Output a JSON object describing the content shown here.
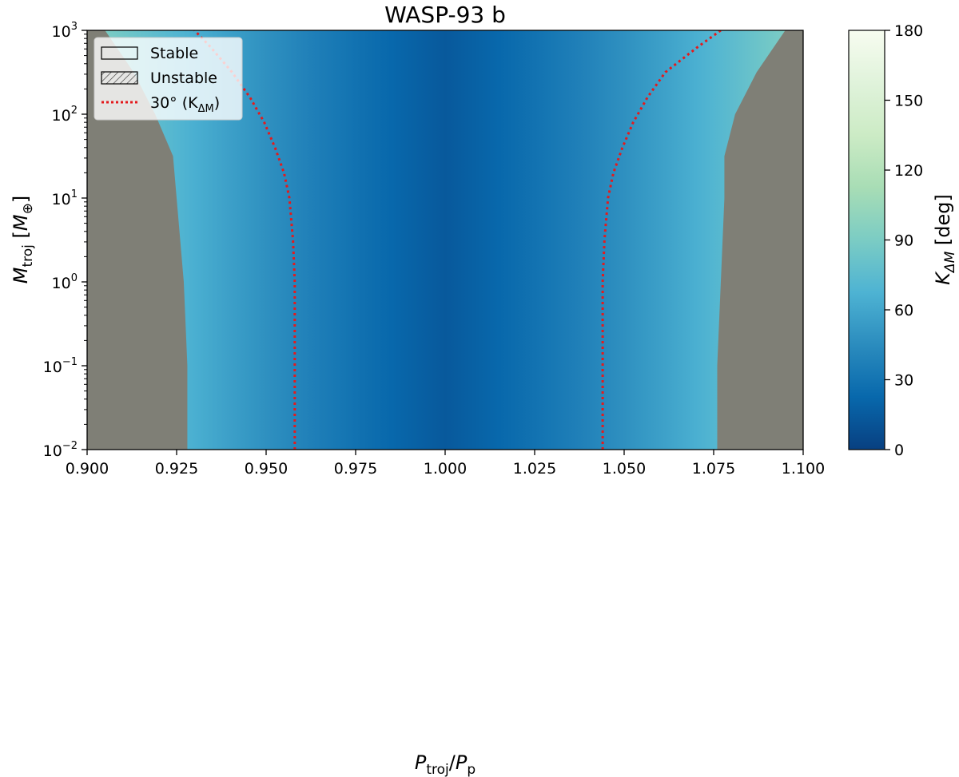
{
  "chart_data": {
    "type": "heatmap",
    "title": "WASP-93 b",
    "xlabel": {
      "main": "P",
      "sub1": "troj",
      "sep": "/",
      "main2": "P",
      "sub2": "p"
    },
    "ylabel": {
      "main": "M",
      "sub1": "troj",
      "unit_open": " [",
      "unit_main": "M",
      "unit_sub": "⊕",
      "unit_close": "]"
    },
    "x_range": [
      0.9,
      1.1
    ],
    "y_range_log10": [
      -2,
      3
    ],
    "y_scale": "log",
    "x_ticks": [
      {
        "value": 0.9,
        "label": "0.900"
      },
      {
        "value": 0.925,
        "label": "0.925"
      },
      {
        "value": 0.95,
        "label": "0.950"
      },
      {
        "value": 0.975,
        "label": "0.975"
      },
      {
        "value": 1.0,
        "label": "1.000"
      },
      {
        "value": 1.025,
        "label": "1.025"
      },
      {
        "value": 1.05,
        "label": "1.050"
      },
      {
        "value": 1.075,
        "label": "1.075"
      },
      {
        "value": 1.1,
        "label": "1.100"
      }
    ],
    "y_ticks": [
      {
        "exp": -2,
        "base": "10",
        "sup": "−2"
      },
      {
        "exp": -1,
        "base": "10",
        "sup": "−1"
      },
      {
        "exp": 0,
        "base": "10",
        "sup": "0"
      },
      {
        "exp": 1,
        "base": "10",
        "sup": "1"
      },
      {
        "exp": 2,
        "base": "10",
        "sup": "2"
      },
      {
        "exp": 3,
        "base": "10",
        "sup": "3"
      }
    ],
    "colorbar": {
      "label_main": "K",
      "label_sub": "ΔM",
      "label_unit": " [deg]",
      "range": [
        0,
        180
      ],
      "ticks": [
        {
          "value": 0,
          "label": "0"
        },
        {
          "value": 30,
          "label": "30"
        },
        {
          "value": 60,
          "label": "60"
        },
        {
          "value": 90,
          "label": "90"
        },
        {
          "value": 120,
          "label": "120"
        },
        {
          "value": 150,
          "label": "150"
        },
        {
          "value": 180,
          "label": "180"
        }
      ],
      "colors": [
        "#084081",
        "#0868ac",
        "#2b8cbe",
        "#4eb3d3",
        "#7bccc4",
        "#a8ddb5",
        "#ccebc5",
        "#e0f3db",
        "#f7fcf0"
      ]
    },
    "unstable_color": "#7f7f76",
    "stability_boundary": {
      "description": "approximate edge of stable region (x at given log10 mass)",
      "log10_mass": [
        -2,
        -1,
        0,
        1,
        1.5,
        2,
        2.5,
        3
      ],
      "left_x": [
        0.928,
        0.928,
        0.927,
        0.925,
        0.924,
        0.919,
        0.913,
        0.905
      ],
      "right_x": [
        1.076,
        1.076,
        1.077,
        1.078,
        1.078,
        1.081,
        1.087,
        1.095
      ]
    },
    "series": [
      {
        "name": "30° (K_ΔM) left",
        "style": "dotted",
        "color": "#e41a1c",
        "x": [
          0.958,
          0.958,
          0.958,
          0.9575,
          0.9565,
          0.955,
          0.9525,
          0.9495,
          0.9455,
          0.9405,
          0.9345,
          0.93
        ],
        "log10_y": [
          -2,
          -1,
          0,
          0.5,
          1,
          1.3,
          1.6,
          1.9,
          2.2,
          2.5,
          2.8,
          3
        ]
      },
      {
        "name": "30° (K_ΔM) right",
        "style": "dotted",
        "color": "#e41a1c",
        "x": [
          1.044,
          1.044,
          1.044,
          1.0445,
          1.0455,
          1.047,
          1.0495,
          1.0525,
          1.0565,
          1.0615,
          1.0705,
          1.077
        ],
        "log10_y": [
          -2,
          -1,
          0,
          0.5,
          1,
          1.3,
          1.6,
          1.9,
          2.2,
          2.5,
          2.8,
          3
        ]
      }
    ],
    "legend": {
      "placement": "top-left",
      "entries": [
        {
          "label": "Stable",
          "kind": "stable"
        },
        {
          "label": "Unstable",
          "kind": "unstable"
        },
        {
          "label_main": "30° (K",
          "label_sub": "ΔM",
          "label_close": ")",
          "kind": "line"
        }
      ]
    }
  }
}
